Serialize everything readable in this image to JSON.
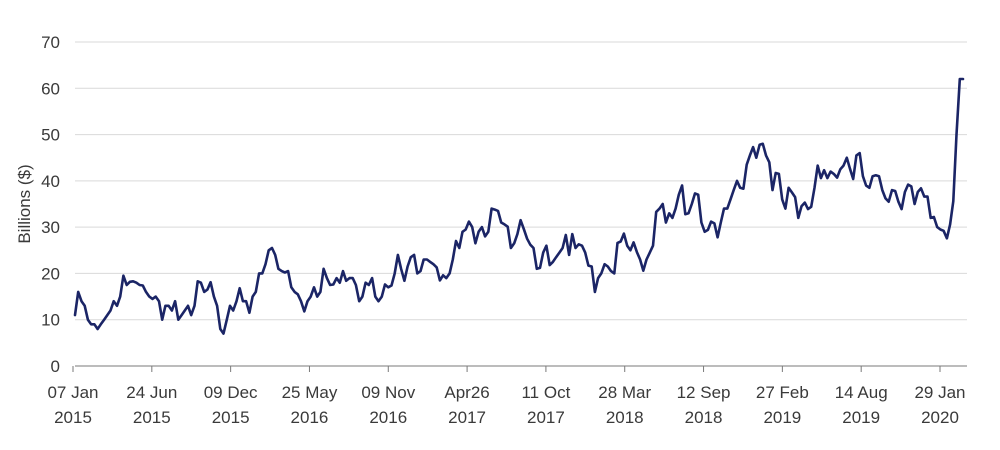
{
  "chart_data": {
    "type": "line",
    "title": "",
    "xlabel": "",
    "ylabel": "Billions ($)",
    "ylim": [
      0,
      70
    ],
    "yticks": [
      0,
      10,
      20,
      30,
      40,
      50,
      60,
      70
    ],
    "grid": true,
    "line_color": "#1b2566",
    "x_tick_labels": [
      {
        "line1": "07 Jan",
        "line2": "2015"
      },
      {
        "line1": "24 Jun",
        "line2": "2015"
      },
      {
        "line1": "09 Dec",
        "line2": "2015"
      },
      {
        "line1": "25 May",
        "line2": "2016"
      },
      {
        "line1": "09 Nov",
        "line2": "2016"
      },
      {
        "line1": "Apr26",
        "line2": "2017"
      },
      {
        "line1": "11 Oct",
        "line2": "2017"
      },
      {
        "line1": "28 Mar",
        "line2": "2018"
      },
      {
        "line1": "12 Sep",
        "line2": "2018"
      },
      {
        "line1": "27 Feb",
        "line2": "2019"
      },
      {
        "line1": "14 Aug",
        "line2": "2019"
      },
      {
        "line1": "29 Jan",
        "line2": "2020"
      }
    ],
    "series": [
      {
        "values": [
          11,
          16,
          14,
          13,
          10,
          9,
          9,
          8,
          9,
          10,
          11,
          12,
          14,
          13,
          15,
          19.5,
          17.5,
          18.2,
          18.3,
          18,
          17.5,
          17.4,
          16,
          15,
          14.5,
          15,
          14,
          10,
          13,
          13,
          12,
          14,
          10,
          11,
          12,
          13,
          11,
          13,
          18.3,
          18,
          16,
          16.5,
          18.1,
          15,
          13,
          8,
          7,
          10,
          13,
          12,
          14,
          16.8,
          14,
          14,
          11.5,
          15,
          16,
          20,
          20,
          22,
          25,
          25.5,
          24,
          21,
          20.5,
          20.2,
          20.5,
          17,
          16,
          15.5,
          14,
          11.8,
          14,
          15,
          17,
          15,
          16,
          21,
          19,
          17.5,
          17.6,
          19,
          18,
          20.5,
          18.4,
          19,
          19,
          17.5,
          14,
          15,
          18,
          17.5,
          19,
          15,
          14,
          15,
          17.6,
          17,
          17.4,
          20,
          24,
          21,
          18.4,
          21.5,
          23.5,
          24,
          20,
          20.5,
          23,
          23,
          22.5,
          22,
          21.3,
          18.5,
          19.6,
          19,
          20,
          23,
          27,
          25.5,
          29,
          29.5,
          31.2,
          30,
          26.5,
          29,
          30,
          28,
          29,
          34,
          33.8,
          33.5,
          31,
          30.6,
          30.1,
          25.5,
          26.5,
          28.5,
          31.5,
          29.6,
          27.5,
          26.2,
          25.5,
          21,
          21.2,
          24.5,
          26,
          21.8,
          22.5,
          23.5,
          24.5,
          25.5,
          28.3,
          24,
          28.5,
          25.5,
          26.3,
          26,
          24.5,
          21.7,
          21.5,
          16,
          19,
          20,
          22,
          21.5,
          20.5,
          20,
          26.6,
          26.9,
          28.6,
          26,
          25,
          26.7,
          24.6,
          23,
          20.6,
          23,
          24.5,
          26,
          33.3,
          34,
          35,
          31,
          33,
          32,
          34,
          37,
          39,
          32.8,
          33,
          35,
          37.3,
          37,
          31,
          29,
          29.4,
          31.2,
          30.8,
          27.8,
          31,
          34,
          34,
          36,
          38,
          40,
          38.5,
          38.3,
          43.5,
          45.5,
          47.3,
          45,
          47.8,
          48,
          45.5,
          44,
          38,
          41.7,
          41.5,
          36,
          34,
          38.5,
          37.5,
          36.5,
          32,
          34.5,
          35.3,
          33.9,
          34.4,
          38.5,
          43.3,
          40.6,
          42.3,
          40.6,
          42,
          41.5,
          40.7,
          42.5,
          43.3,
          45,
          42.6,
          40.4,
          45.5,
          46,
          41,
          39,
          38.5,
          41,
          41.2,
          41,
          38,
          36.2,
          35.5,
          38,
          37.8,
          35.5,
          33.9,
          37.6,
          39.2,
          38.8,
          35,
          37.6,
          38.4,
          36.6,
          36.6,
          32,
          32.2,
          30,
          29.5,
          29.2,
          27.6,
          30.6,
          35.6,
          50,
          62,
          62
        ]
      }
    ]
  }
}
